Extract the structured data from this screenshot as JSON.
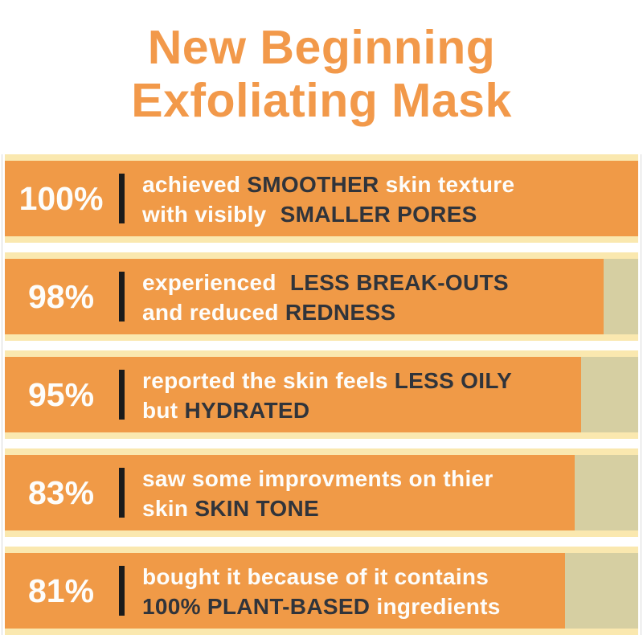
{
  "title": {
    "line1": "New Beginning",
    "line2": "Exfoliating Mask"
  },
  "colors": {
    "title_orange": "#F2994A",
    "bar_orange": "#F09A47",
    "bar_remainder_beige": "#D6CFA2",
    "bar_edge_cream": "#FAE8AF",
    "dark_text": "#30343B",
    "light_text": "#FDFDFB",
    "divider_black": "#1B1B1B"
  },
  "chart_data": {
    "type": "bar",
    "orientation": "horizontal",
    "title": "New Beginning Exfoliating Mask",
    "unit": "%",
    "xlim": [
      0,
      100
    ],
    "grid": false,
    "legend": false,
    "values": [
      100,
      98,
      95,
      83,
      81
    ],
    "categories": [
      "achieved SMOOTHER skin texture with visibly SMALLER PORES",
      "experienced LESS BREAK-OUTS and reduced REDNESS",
      "reported the skin feels LESS OILY but HYDRATED",
      "saw some improvments on thier skin SKIN TONE",
      "bought it because of it contains 100% PLANT-BASED ingredients"
    ],
    "bars": [
      {
        "percent": "100%",
        "value": 100,
        "fill_width_pct": 100,
        "lines": [
          [
            {
              "text": "achieved ",
              "tone": "light"
            },
            {
              "text": "SMOOTHER",
              "tone": "dark"
            },
            {
              "text": " skin texture",
              "tone": "light"
            }
          ],
          [
            {
              "text": "with visibly ",
              "tone": "light"
            },
            {
              "text": "SMALLER PORES",
              "tone": "dark",
              "pad": true
            }
          ]
        ]
      },
      {
        "percent": "98%",
        "value": 98,
        "fill_width_pct": 94.5,
        "lines": [
          [
            {
              "text": "experienced ",
              "tone": "light"
            },
            {
              "text": "LESS BREAK-OUTS",
              "tone": "dark",
              "pad": true
            }
          ],
          [
            {
              "text": "and reduced ",
              "tone": "light"
            },
            {
              "text": "REDNESS",
              "tone": "dark"
            }
          ]
        ]
      },
      {
        "percent": "95%",
        "value": 95,
        "fill_width_pct": 91,
        "lines": [
          [
            {
              "text": "reported the skin feels ",
              "tone": "light"
            },
            {
              "text": "LESS OILY",
              "tone": "dark"
            }
          ],
          [
            {
              "text": "but ",
              "tone": "light"
            },
            {
              "text": "HYDRATED",
              "tone": "dark"
            }
          ]
        ]
      },
      {
        "percent": "83%",
        "value": 83,
        "fill_width_pct": 90,
        "lines": [
          [
            {
              "text": "saw some improvments on thier",
              "tone": "light"
            }
          ],
          [
            {
              "text": "skin ",
              "tone": "light"
            },
            {
              "text": "SKIN TONE",
              "tone": "dark"
            }
          ]
        ]
      },
      {
        "percent": "81%",
        "value": 81,
        "fill_width_pct": 88.5,
        "lines": [
          [
            {
              "text": "bought it because of it contains",
              "tone": "light"
            }
          ],
          [
            {
              "text": "100% PLANT-BASED",
              "tone": "dark"
            },
            {
              "text": " ingredients",
              "tone": "light"
            }
          ]
        ]
      }
    ]
  }
}
